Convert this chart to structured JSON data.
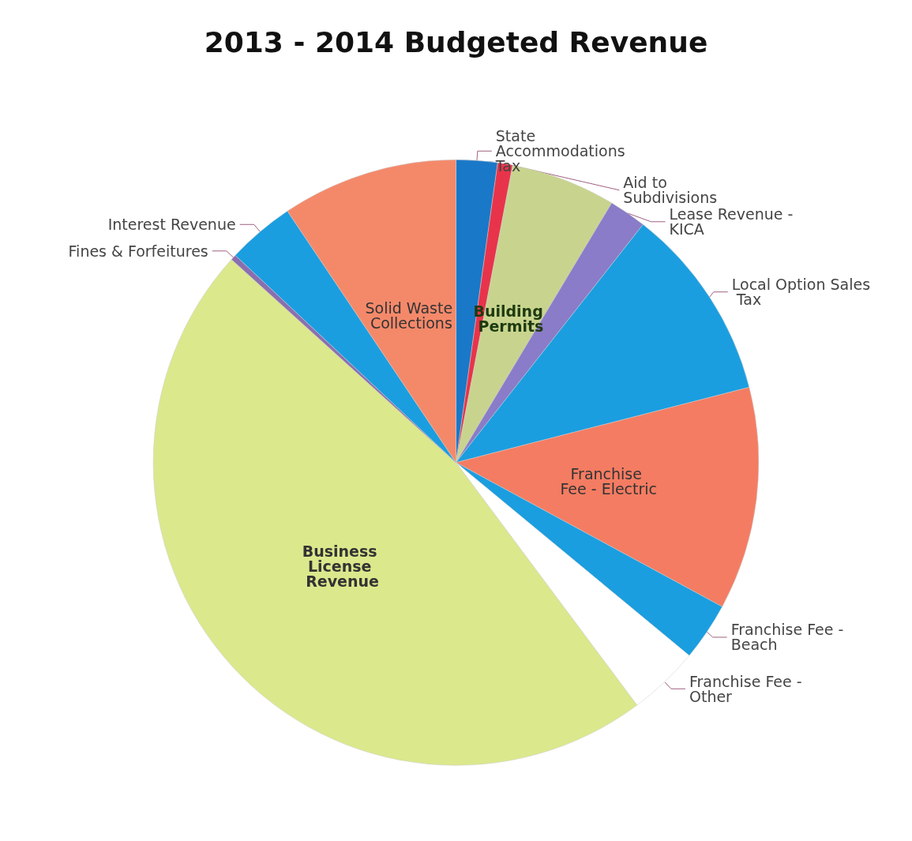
{
  "chart_data": {
    "type": "pie",
    "title": "2013 - 2014 Budgeted Revenue",
    "categories": [
      "State Accommodations Tax",
      "Aid to Subdivisions",
      "Building Permits",
      "Lease Revenue - KICA",
      "Local Option Sales Tax",
      "Franchise Fee - Electric",
      "Franchise Fee - Beach",
      "Franchise Fee - Other",
      "Business License Revenue",
      "Fines & Forfeitures",
      "Interest Revenue",
      "Solid Waste Collections"
    ],
    "values": [
      2.2,
      0.8,
      5.6,
      2.0,
      10.4,
      11.9,
      3.1,
      3.8,
      46.9,
      0.3,
      3.6,
      9.4
    ],
    "colors": [
      "#1a78c8",
      "#e8344a",
      "#c8d48e",
      "#8a7cc8",
      "#1a9ee0",
      "#f47c62",
      "#1a9ee0",
      "#ffffff",
      "#dce88c",
      "#8a6fb0",
      "#1a9ee0",
      "#f4896a"
    ],
    "legend": false
  }
}
